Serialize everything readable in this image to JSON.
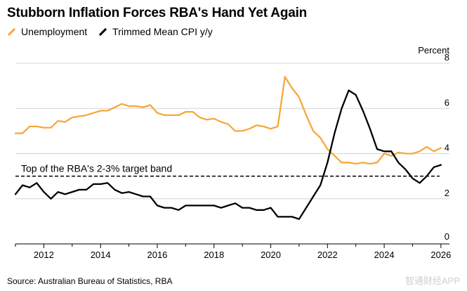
{
  "title": "Stubborn Inflation Forces RBA's Hand Yet Again",
  "source": "Source: Australian Bureau of Statistics, RBA",
  "watermark": "智通财经APP",
  "chart_data": {
    "type": "line",
    "title": "Stubborn Inflation Forces RBA's Hand Yet Again",
    "ylabel": "Percent",
    "xlim": [
      2011,
      2026.3
    ],
    "ylim": [
      0,
      8
    ],
    "yticks": [
      0,
      2,
      4,
      6,
      8
    ],
    "xticks": [
      2012,
      2014,
      2016,
      2018,
      2020,
      2022,
      2024,
      2026
    ],
    "grid": true,
    "legend_position": "top-left",
    "reference_line": {
      "y": 3,
      "label": "Top of the RBA's 2-3% target band"
    },
    "series": [
      {
        "name": "Unemployment",
        "color": "#f7a83b",
        "x": [
          2011.0,
          2011.25,
          2011.5,
          2011.75,
          2012.0,
          2012.25,
          2012.5,
          2012.75,
          2013.0,
          2013.25,
          2013.5,
          2013.75,
          2014.0,
          2014.25,
          2014.5,
          2014.75,
          2015.0,
          2015.25,
          2015.5,
          2015.75,
          2016.0,
          2016.25,
          2016.5,
          2016.75,
          2017.0,
          2017.25,
          2017.5,
          2017.75,
          2018.0,
          2018.25,
          2018.5,
          2018.75,
          2019.0,
          2019.25,
          2019.5,
          2019.75,
          2020.0,
          2020.25,
          2020.5,
          2020.75,
          2021.0,
          2021.25,
          2021.5,
          2021.75,
          2022.0,
          2022.25,
          2022.5,
          2022.75,
          2023.0,
          2023.25,
          2023.5,
          2023.75,
          2024.0,
          2024.25,
          2024.5,
          2024.75,
          2025.0,
          2025.25,
          2025.5,
          2025.75,
          2026.0
        ],
        "values": [
          4.9,
          4.9,
          5.2,
          5.2,
          5.15,
          5.15,
          5.45,
          5.4,
          5.6,
          5.65,
          5.7,
          5.8,
          5.9,
          5.9,
          6.05,
          6.2,
          6.1,
          6.1,
          6.05,
          6.15,
          5.8,
          5.7,
          5.7,
          5.7,
          5.85,
          5.85,
          5.6,
          5.5,
          5.55,
          5.4,
          5.3,
          5.0,
          5.0,
          5.1,
          5.25,
          5.2,
          5.1,
          5.2,
          7.4,
          6.9,
          6.5,
          5.7,
          5.0,
          4.7,
          4.2,
          3.9,
          3.6,
          3.6,
          3.55,
          3.6,
          3.55,
          3.6,
          4.0,
          3.9,
          4.05,
          4.0,
          4.0,
          4.1,
          4.3,
          4.1,
          4.25
        ]
      },
      {
        "name": "Trimmed Mean CPI y/y",
        "color": "#000000",
        "x": [
          2011.0,
          2011.25,
          2011.5,
          2011.75,
          2012.0,
          2012.25,
          2012.5,
          2012.75,
          2013.0,
          2013.25,
          2013.5,
          2013.75,
          2014.0,
          2014.25,
          2014.5,
          2014.75,
          2015.0,
          2015.25,
          2015.5,
          2015.75,
          2016.0,
          2016.25,
          2016.5,
          2016.75,
          2017.0,
          2017.25,
          2017.5,
          2017.75,
          2018.0,
          2018.25,
          2018.5,
          2018.75,
          2019.0,
          2019.25,
          2019.5,
          2019.75,
          2020.0,
          2020.25,
          2020.5,
          2020.75,
          2021.0,
          2021.25,
          2021.5,
          2021.75,
          2022.0,
          2022.25,
          2022.5,
          2022.75,
          2023.0,
          2023.25,
          2023.5,
          2023.75,
          2024.0,
          2024.25,
          2024.5,
          2024.75,
          2025.0,
          2025.25,
          2025.5,
          2025.75,
          2026.0
        ],
        "values": [
          2.2,
          2.6,
          2.5,
          2.7,
          2.3,
          2.0,
          2.3,
          2.2,
          2.3,
          2.4,
          2.4,
          2.65,
          2.65,
          2.7,
          2.4,
          2.25,
          2.3,
          2.2,
          2.1,
          2.1,
          1.7,
          1.6,
          1.6,
          1.5,
          1.7,
          1.7,
          1.7,
          1.7,
          1.7,
          1.6,
          1.7,
          1.8,
          1.6,
          1.6,
          1.5,
          1.5,
          1.6,
          1.2,
          1.2,
          1.2,
          1.1,
          1.6,
          2.1,
          2.6,
          3.6,
          4.9,
          6.0,
          6.8,
          6.6,
          5.9,
          5.1,
          4.2,
          4.1,
          4.1,
          3.6,
          3.3,
          2.9,
          2.7,
          3.0,
          3.4,
          3.5
        ]
      }
    ]
  }
}
